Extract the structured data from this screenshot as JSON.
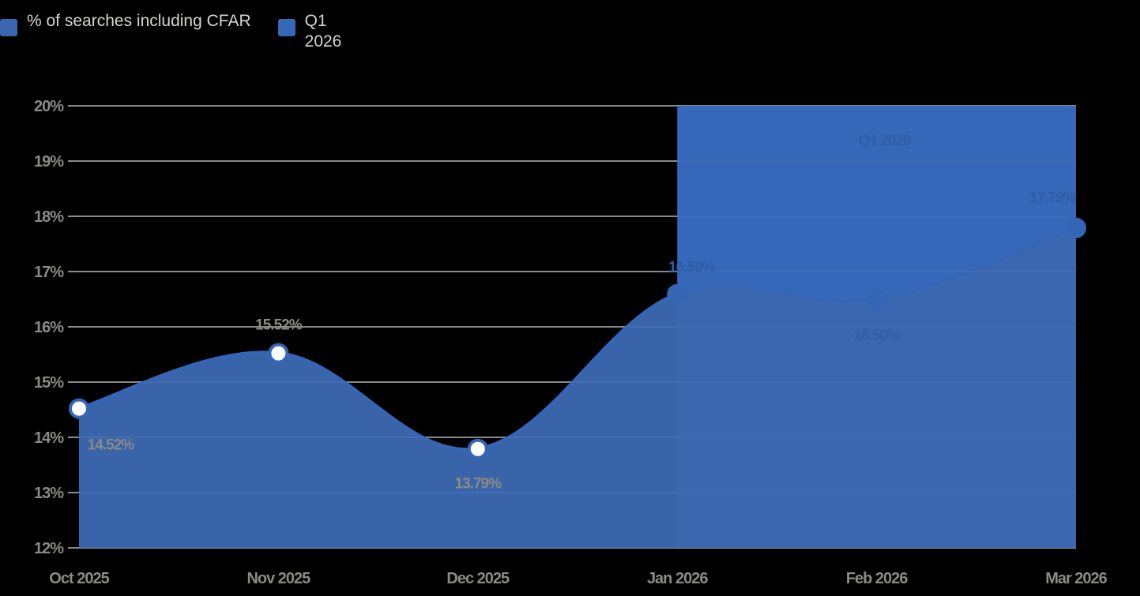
{
  "legend": {
    "items": [
      {
        "label": "% of searches including CFAR",
        "color": "#3b67b0"
      },
      {
        "label_line1": "Q1",
        "label_line2": "2026",
        "color": "#3568b8"
      }
    ]
  },
  "y_axis": {
    "ticks": [
      "20%",
      "19%",
      "18%",
      "17%",
      "16%",
      "15%",
      "14%",
      "13%",
      "12%"
    ]
  },
  "x_axis": {
    "ticks": [
      "Oct 2025",
      "Nov 2025",
      "Dec 2025",
      "Jan 2026",
      "Feb 2026",
      "Mar 2026"
    ]
  },
  "band": {
    "label": "Q1 2026"
  },
  "data_labels": [
    "14.52%",
    "15.52%",
    "13.79%",
    "16.59%",
    "16.50%",
    "17.79%"
  ],
  "chart_data": {
    "type": "area",
    "title": "",
    "xlabel": "",
    "ylabel": "",
    "categories": [
      "Oct 2025",
      "Nov 2025",
      "Dec 2025",
      "Jan 2026",
      "Feb 2026",
      "Mar 2026"
    ],
    "series": [
      {
        "name": "% of searches including CFAR",
        "values": [
          14.52,
          15.52,
          13.79,
          16.59,
          16.5,
          17.79
        ],
        "color": "#3b67b0"
      }
    ],
    "highlight_band": {
      "name": "Q1 2026",
      "from": "Jan 2026",
      "to": "Mar 2026",
      "color": "#3568b8"
    },
    "ylim": [
      12,
      20
    ],
    "ytick_step": 1,
    "grid": true,
    "legend_position": "top-left",
    "smooth": true
  }
}
